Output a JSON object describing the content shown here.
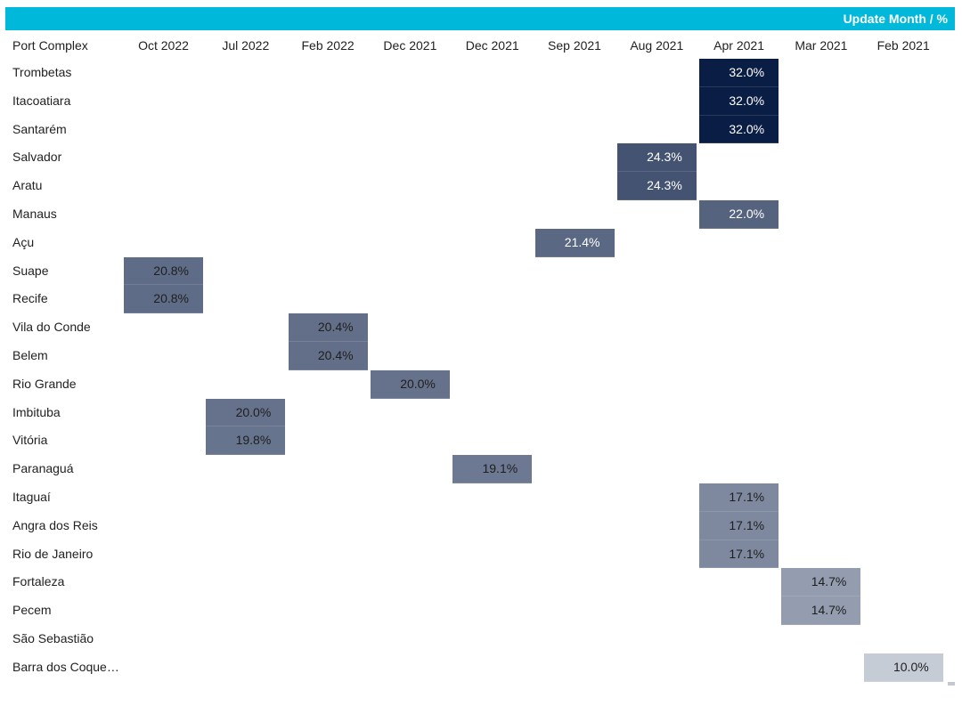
{
  "header": {
    "label": "Update Month / %",
    "bar_color": "#00b8d9"
  },
  "chart_data": {
    "type": "heatmap",
    "row_header": "Port Complex",
    "columns": [
      "Oct 2022",
      "Jul 2022",
      "Feb 2022",
      "Dec 2021",
      "Dec 2021",
      "Sep 2021",
      "Aug 2021",
      "Apr 2021",
      "Mar 2021",
      "Feb 2021"
    ],
    "rows": [
      {
        "port": "Trombetas",
        "column_index": 7,
        "value": 32.0,
        "label": "32.0%"
      },
      {
        "port": "Itacoatiara",
        "column_index": 7,
        "value": 32.0,
        "label": "32.0%"
      },
      {
        "port": "Santarém",
        "column_index": 7,
        "value": 32.0,
        "label": "32.0%"
      },
      {
        "port": "Salvador",
        "column_index": 6,
        "value": 24.3,
        "label": "24.3%"
      },
      {
        "port": "Aratu",
        "column_index": 6,
        "value": 24.3,
        "label": "24.3%"
      },
      {
        "port": "Manaus",
        "column_index": 7,
        "value": 22.0,
        "label": "22.0%"
      },
      {
        "port": "Açu",
        "column_index": 5,
        "value": 21.4,
        "label": "21.4%"
      },
      {
        "port": "Suape",
        "column_index": 0,
        "value": 20.8,
        "label": "20.8%"
      },
      {
        "port": "Recife",
        "column_index": 0,
        "value": 20.8,
        "label": "20.8%"
      },
      {
        "port": "Vila do Conde",
        "column_index": 2,
        "value": 20.4,
        "label": "20.4%"
      },
      {
        "port": "Belem",
        "column_index": 2,
        "value": 20.4,
        "label": "20.4%"
      },
      {
        "port": "Rio Grande",
        "column_index": 3,
        "value": 20.0,
        "label": "20.0%"
      },
      {
        "port": "Imbituba",
        "column_index": 1,
        "value": 20.0,
        "label": "20.0%"
      },
      {
        "port": "Vitória",
        "column_index": 1,
        "value": 19.8,
        "label": "19.8%"
      },
      {
        "port": "Paranaguá",
        "column_index": 4,
        "value": 19.1,
        "label": "19.1%"
      },
      {
        "port": "Itaguaí",
        "column_index": 7,
        "value": 17.1,
        "label": "17.1%"
      },
      {
        "port": "Angra dos Reis",
        "column_index": 7,
        "value": 17.1,
        "label": "17.1%"
      },
      {
        "port": "Rio de Janeiro",
        "column_index": 7,
        "value": 17.1,
        "label": "17.1%"
      },
      {
        "port": "Fortaleza",
        "column_index": 8,
        "value": 14.7,
        "label": "14.7%"
      },
      {
        "port": "Pecem",
        "column_index": 8,
        "value": 14.7,
        "label": "14.7%"
      },
      {
        "port": "São Sebastião",
        "column_index": null,
        "value": null,
        "label": ""
      },
      {
        "port": "Barra dos Coque…",
        "column_index": 9,
        "value": 10.0,
        "label": "10.0%"
      }
    ],
    "color_scale": {
      "low_value": 10.0,
      "low_color": "#c6ccd6",
      "high_value": 32.0,
      "high_color": "#0a1d45"
    },
    "legend": "none",
    "grid": false
  }
}
